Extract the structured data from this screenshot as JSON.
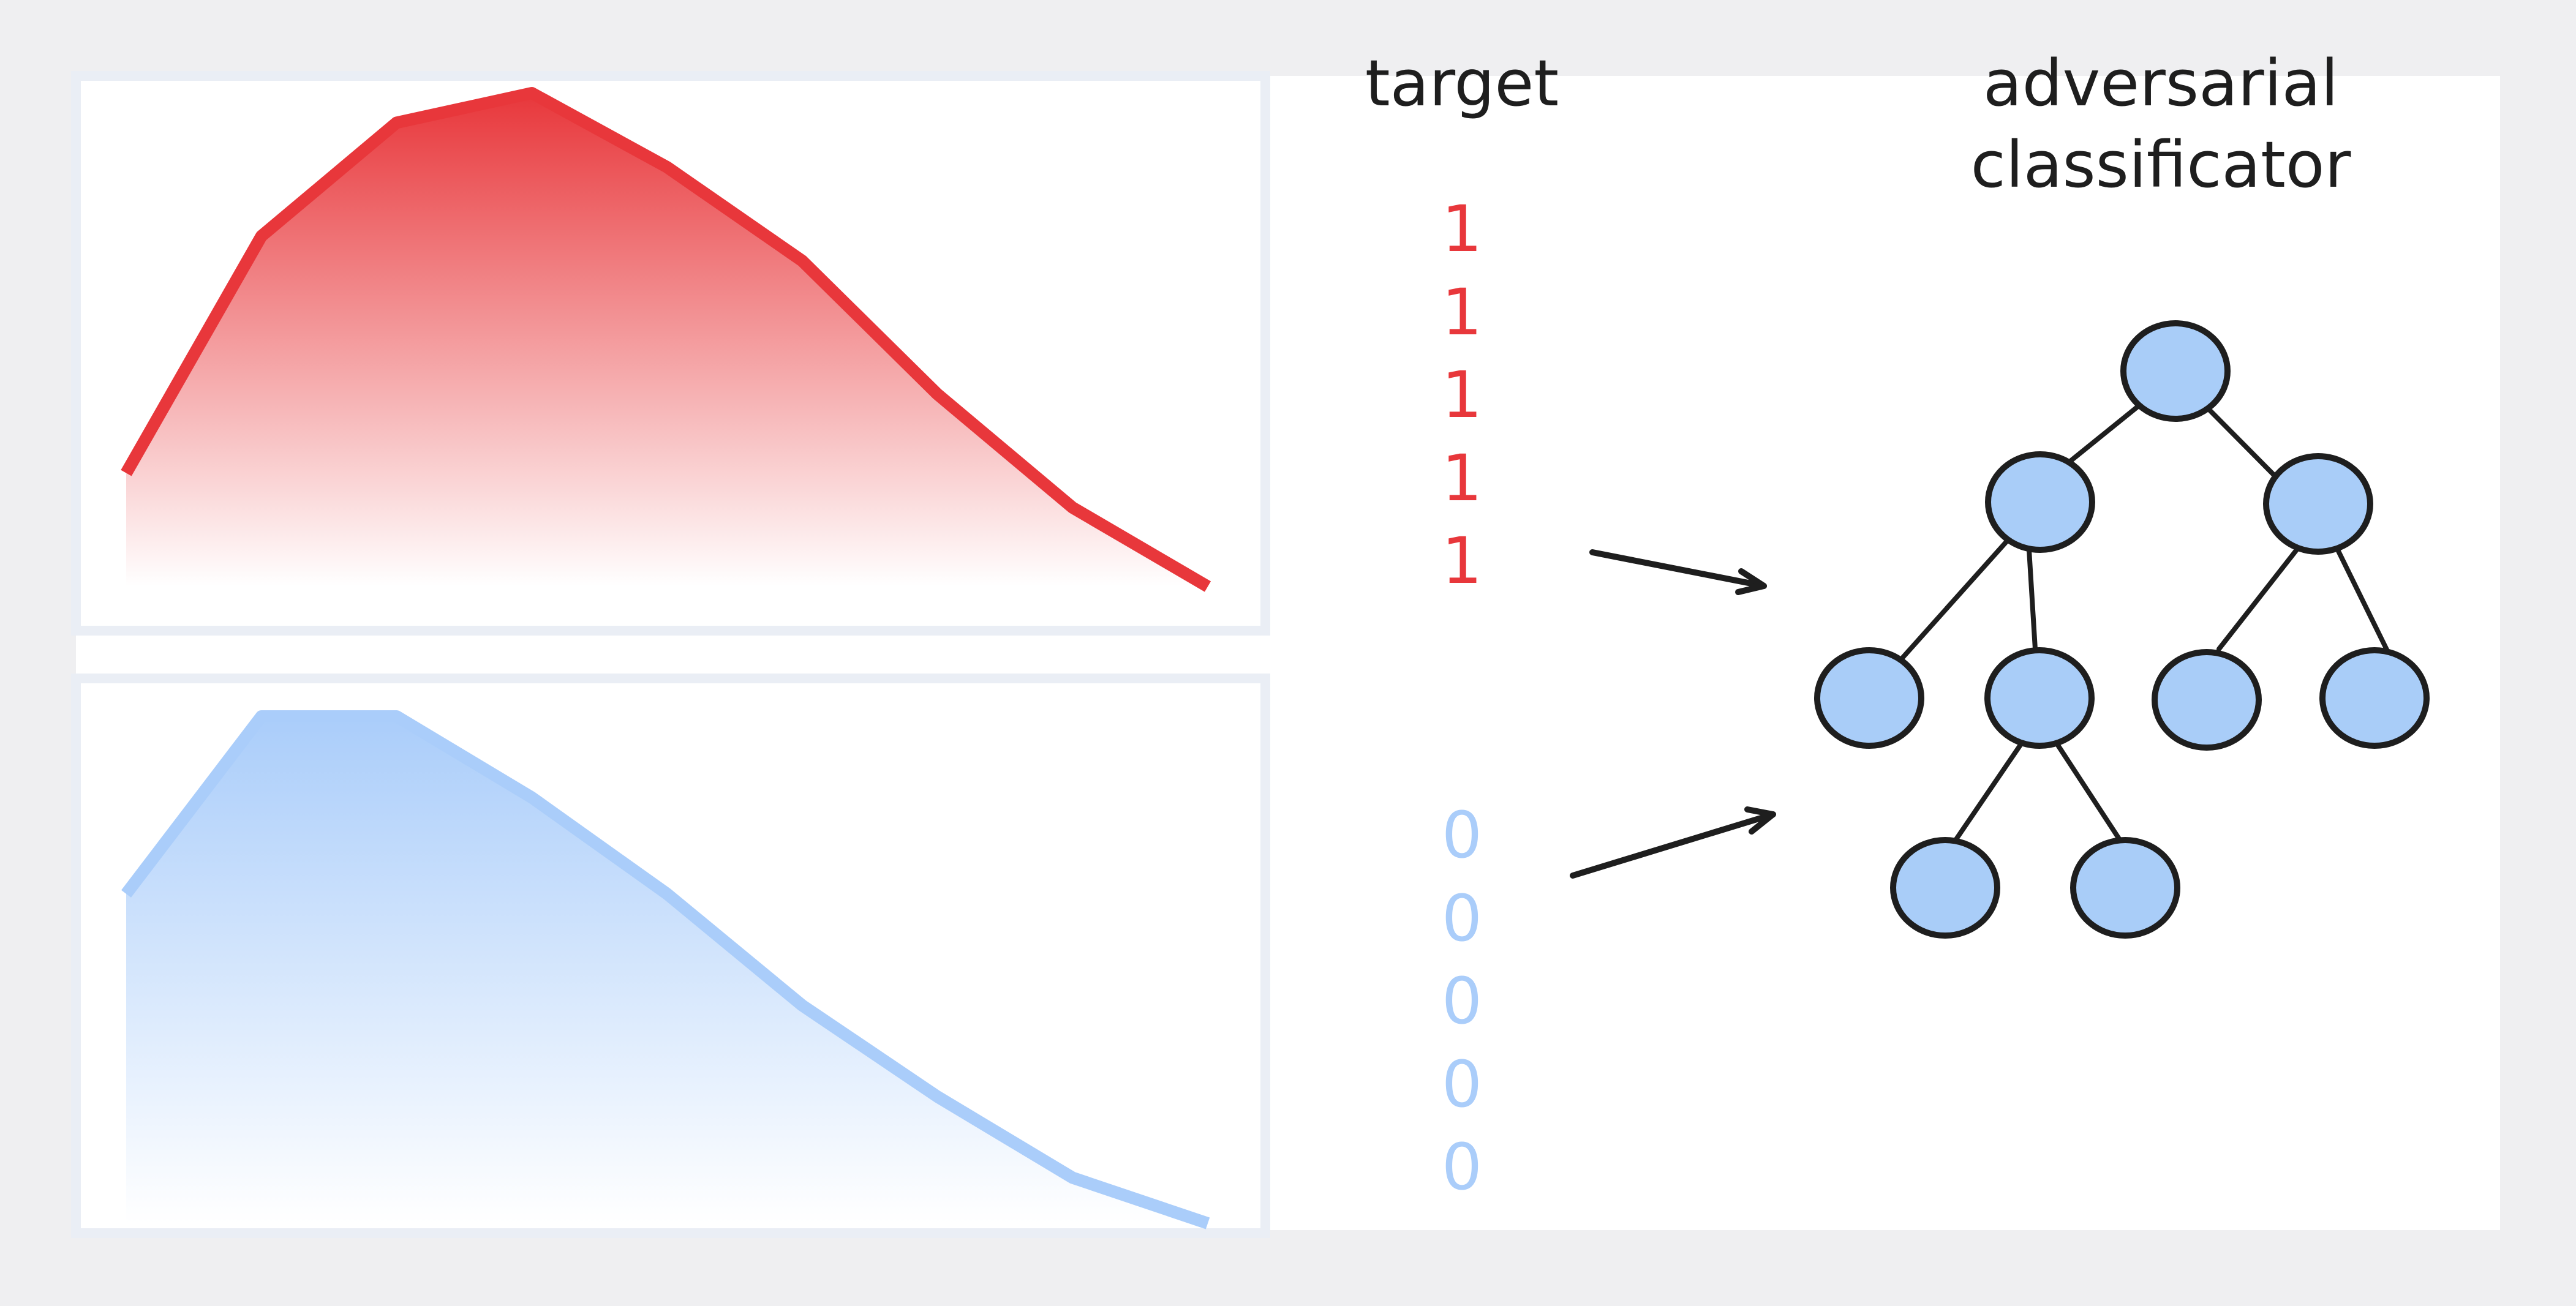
{
  "headers": {
    "target": "target",
    "classifier_line1": "adversarial",
    "classifier_line2": "classificator"
  },
  "targets": {
    "positive": [
      "1",
      "1",
      "1",
      "1",
      "1"
    ],
    "negative": [
      "0",
      "0",
      "0",
      "0",
      "0"
    ]
  },
  "colors": {
    "frame": "#efeff1",
    "panel_border": "#eaeef5",
    "red": "#e8373b",
    "blue": "#aacdfa",
    "node_fill": "#a9cdf8",
    "node_stroke": "#1e1e1e",
    "ink": "#1e1e1e"
  },
  "chart_data": [
    {
      "type": "area",
      "name": "",
      "x": [
        0,
        1,
        2,
        3,
        4,
        5,
        6,
        7,
        8
      ],
      "y": [
        0.23,
        0.71,
        0.94,
        1.0,
        0.85,
        0.66,
        0.39,
        0.16,
        0.0
      ],
      "ylim": [
        0,
        1
      ]
    },
    {
      "type": "area",
      "name": "",
      "x": [
        0,
        1,
        2,
        3,
        4,
        5,
        6,
        7,
        8
      ],
      "y": [
        0.65,
        1.0,
        1.0,
        0.84,
        0.65,
        0.43,
        0.25,
        0.09,
        0.0
      ],
      "ylim": [
        0,
        1
      ]
    }
  ]
}
